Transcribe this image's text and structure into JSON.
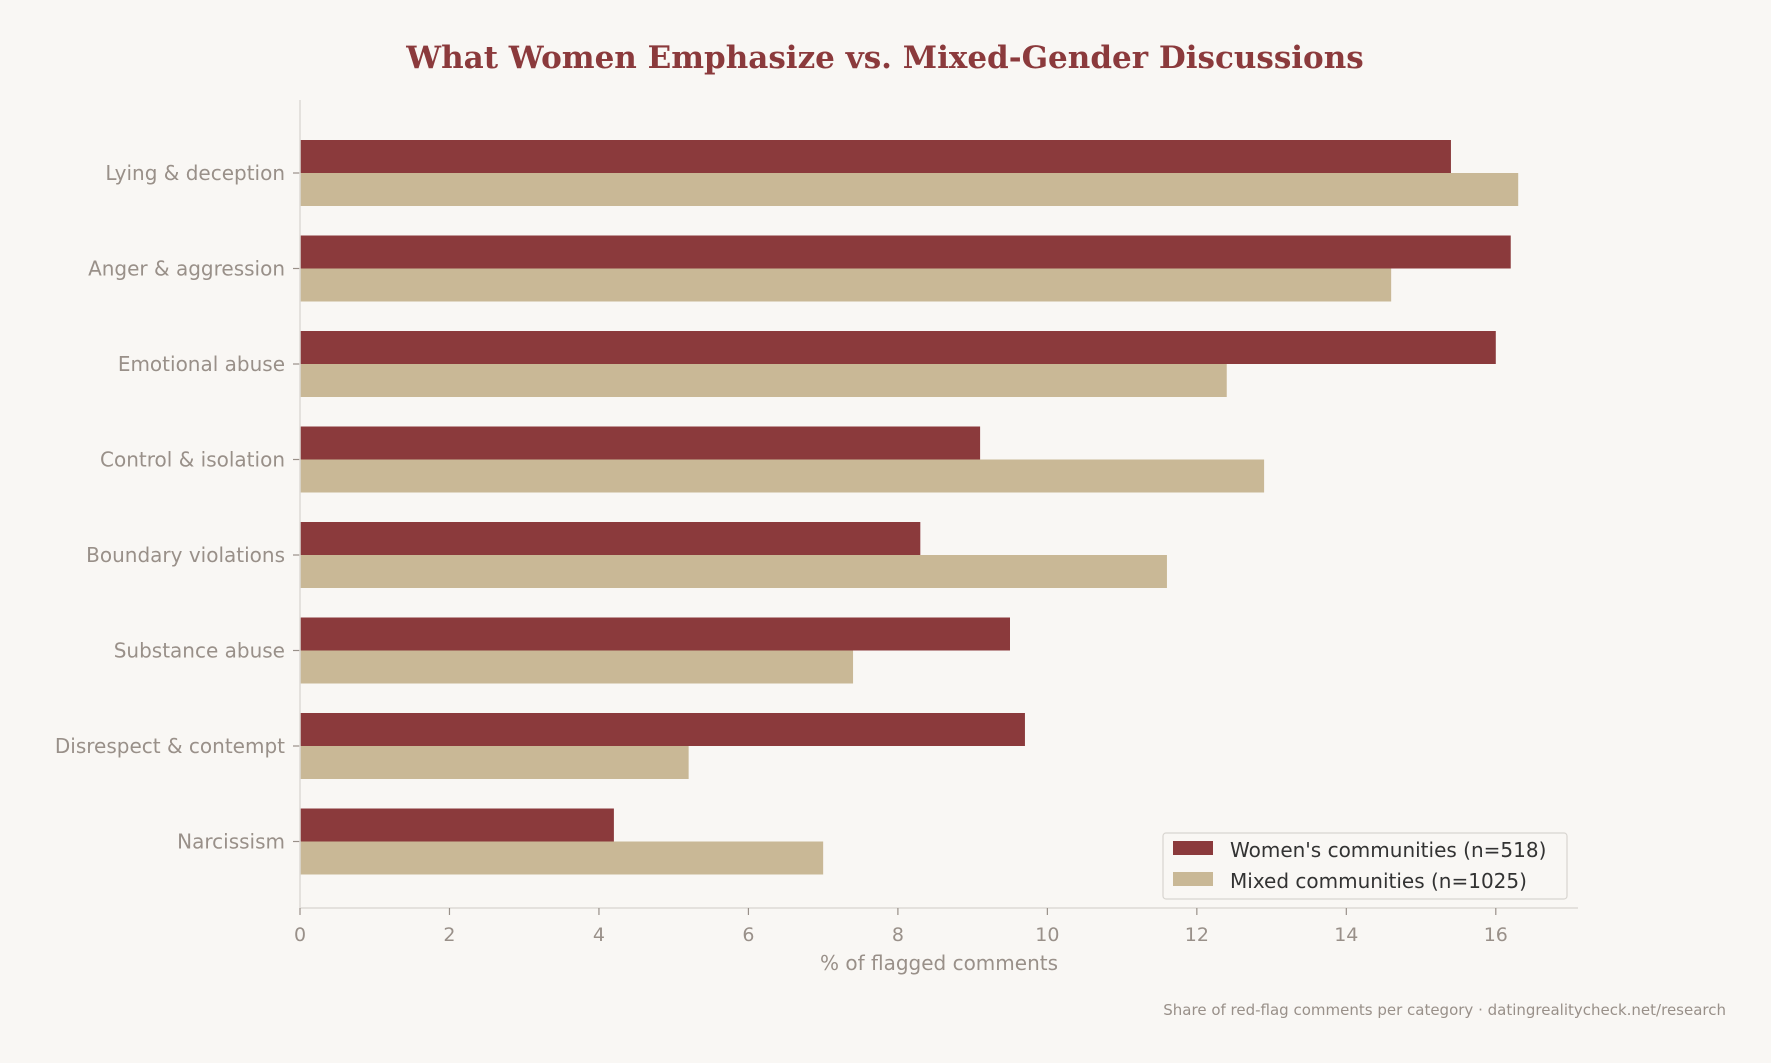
{
  "chart_data": {
    "type": "bar",
    "orientation": "horizontal",
    "title": "What Women Emphasize vs. Mixed-Gender Discussions",
    "xlabel": "% of flagged comments",
    "ylabel": "",
    "xlim": [
      0,
      17.1
    ],
    "xticks": [
      0,
      2,
      4,
      6,
      8,
      10,
      12,
      14,
      16
    ],
    "grid": false,
    "legend_position": "bottom-right",
    "categories": [
      "Lying & deception",
      "Anger & aggression",
      "Emotional abuse",
      "Control & isolation",
      "Boundary violations",
      "Substance abuse",
      "Disrespect & contempt",
      "Narcissism"
    ],
    "series": [
      {
        "name": "Women's communities (n=518)",
        "color": "#8b3a3c",
        "values": [
          15.4,
          16.2,
          16.0,
          9.1,
          8.3,
          9.5,
          9.7,
          4.2
        ]
      },
      {
        "name": "Mixed communities (n=1025)",
        "color": "#c9b896",
        "values": [
          16.3,
          14.6,
          12.4,
          12.9,
          11.6,
          7.4,
          5.2,
          7.0
        ]
      }
    ],
    "footer": "Share of red-flag comments per category · datingrealitycheck.net/research"
  },
  "colors": {
    "background": "#f9f7f4",
    "title": "#8b3a3c",
    "axis_text": "#999089",
    "legend_text": "#333333",
    "axis_line": "#dddad5"
  }
}
